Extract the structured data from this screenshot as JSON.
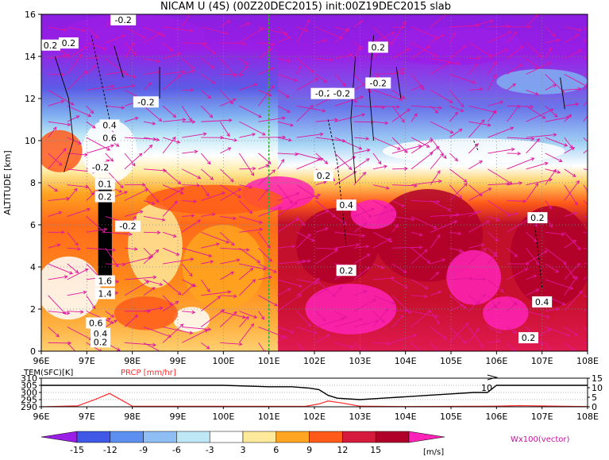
{
  "chart_data": [
    {
      "type": "heatmap",
      "title": "NICAM U (4S) (00Z20DEC2015) init:00Z19DEC2015 slab",
      "xlabel": "",
      "ylabel": "ALTITUDE [km]",
      "x_ticks": [
        "96E",
        "97E",
        "98E",
        "99E",
        "100E",
        "101E",
        "102E",
        "103E",
        "104E",
        "105E",
        "106E",
        "107E",
        "108E"
      ],
      "y_ticks": [
        0,
        2,
        4,
        6,
        8,
        10,
        12,
        14,
        16
      ],
      "xlim": [
        96,
        108
      ],
      "ylim": [
        0,
        16
      ],
      "grid": true,
      "colorbar": {
        "unit": "[m/s]",
        "ticks": [
          -15,
          -12,
          -9,
          -6,
          -3,
          3,
          6,
          9,
          12,
          15
        ],
        "colors": [
          "#9a1ee6",
          "#3f58e6",
          "#5c8ff0",
          "#8fbef5",
          "#bfe8f7",
          "#ffffff",
          "#ffe99a",
          "#ffa521",
          "#ff5a1a",
          "#d61a3d",
          "#b0002a",
          "#ff23b7"
        ]
      },
      "vector_label": "Wx100(vector)",
      "contour_labels": [
        "0.2",
        "0.2",
        "-0.2",
        "0.2",
        "-0.2",
        "-0.2",
        "-0.2",
        "0.4",
        "0.6",
        "-0.2",
        "0.1",
        "0.2",
        "-0.2",
        "-0.2",
        "0.2",
        "0.4",
        "0.2",
        "0.2",
        "0.4",
        "0.2",
        "1.6",
        "1.4",
        "0.6",
        "0.4",
        "0.2"
      ],
      "series": [
        {
          "name": "U",
          "z_profile": [
            {
              "x": 96.0,
              "u": 5
            },
            {
              "x": 97.0,
              "u": 7
            },
            {
              "x": 98.0,
              "u": 5
            },
            {
              "x": 99.0,
              "u": 6
            },
            {
              "x": 100.0,
              "u": 9
            },
            {
              "x": 101.0,
              "u": 10
            },
            {
              "x": 102.0,
              "u": 13
            },
            {
              "x": 103.0,
              "u": 12
            },
            {
              "x": 104.0,
              "u": 12
            },
            {
              "x": 105.0,
              "u": 11
            },
            {
              "x": 106.0,
              "u": 11
            },
            {
              "x": 107.0,
              "u": 12
            },
            {
              "x": 108.0,
              "u": 11
            }
          ]
        }
      ]
    },
    {
      "type": "line",
      "labels": {
        "tem": "TEM(SFC)[K]",
        "prcp": "PRCP [mm/hr]"
      },
      "y_left_ticks": [
        290,
        295,
        300,
        305,
        310
      ],
      "y_right_ticks": [
        0,
        5,
        10,
        15
      ],
      "x_ticks": [
        "96E",
        "97E",
        "98E",
        "99E",
        "100E",
        "101E",
        "102E",
        "103E",
        "104E",
        "105E",
        "106E",
        "107E",
        "108E"
      ],
      "xlim": [
        96,
        108
      ],
      "series": [
        {
          "name": "TEM(SFC)[K]",
          "color": "#000000",
          "x": [
            96,
            97,
            98,
            99,
            100,
            101,
            101.5,
            101.9,
            102.1,
            102.3,
            102.5,
            103,
            103.5,
            104,
            104.5,
            105,
            105.5,
            105.8,
            106,
            107,
            108
          ],
          "y": [
            305,
            305,
            305,
            305,
            305,
            304,
            304,
            303,
            302,
            298,
            296,
            295,
            296,
            297,
            298,
            299,
            300,
            300,
            305,
            305,
            305
          ]
        },
        {
          "name": "PRCP [mm/hr]",
          "color": "#ff2a2a",
          "x": [
            96,
            96.8,
            97.2,
            97.5,
            97.8,
            98,
            101.8,
            102.1,
            102.3,
            102.6,
            103,
            104,
            106,
            106.5,
            108
          ],
          "y": [
            0,
            0.5,
            4,
            7,
            3,
            0.3,
            0.2,
            1.5,
            3,
            2,
            0.3,
            0.1,
            0.3,
            0.6,
            0.1
          ]
        }
      ],
      "annotation": "10"
    }
  ]
}
